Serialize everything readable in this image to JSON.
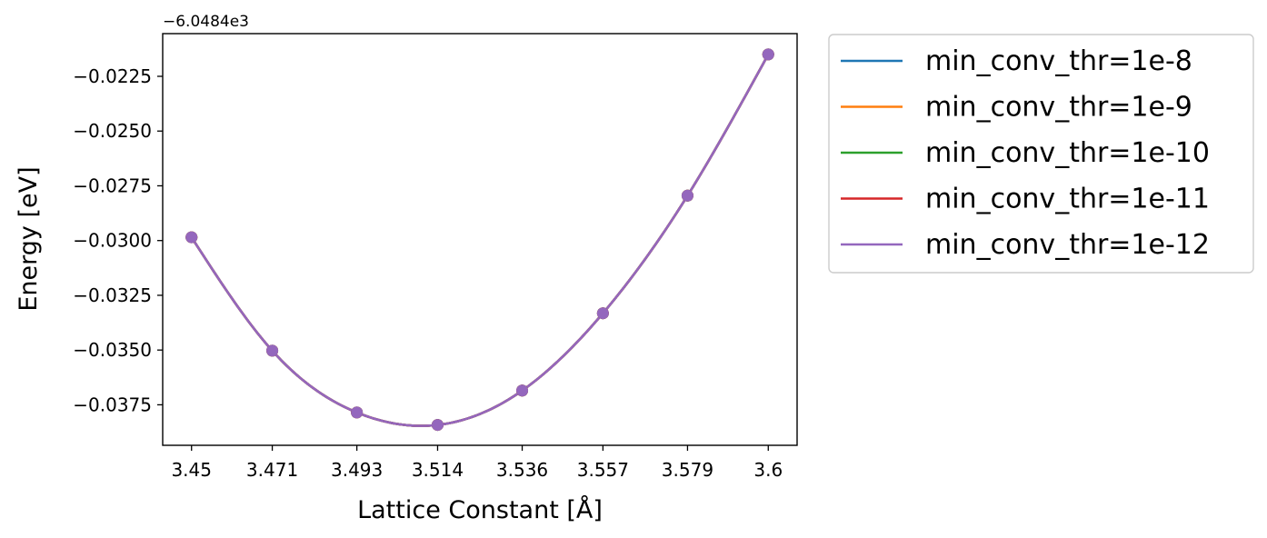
{
  "chart_data": {
    "type": "line",
    "xlabel": "Lattice Constant [Å]",
    "ylabel": "Energy [eV]",
    "y_offset_label": "−6.0484e3",
    "y_offset": -6048.4,
    "x_ticks": [
      3.45,
      3.471,
      3.493,
      3.514,
      3.536,
      3.557,
      3.579,
      3.6
    ],
    "x_tick_labels": [
      "3.45",
      "3.471",
      "3.493",
      "3.514",
      "3.536",
      "3.557",
      "3.579",
      "3.6"
    ],
    "y_ticks": [
      -0.0225,
      -0.025,
      -0.0275,
      -0.03,
      -0.0325,
      -0.035,
      -0.0375
    ],
    "y_tick_labels": [
      "−0.0225",
      "−0.0250",
      "−0.0275",
      "−0.0300",
      "−0.0325",
      "−0.0350",
      "−0.0375"
    ],
    "xlim": [
      3.4425,
      3.6075
    ],
    "ylim": [
      -0.03935,
      -0.02055
    ],
    "grid": false,
    "legend_position": "outside-right",
    "x": [
      3.45,
      3.471,
      3.493,
      3.514,
      3.536,
      3.557,
      3.579,
      3.6
    ],
    "series": [
      {
        "name": "min_conv_thr=1e-8",
        "color": "#1f77b4",
        "values": [
          -0.02985,
          -0.03503,
          -0.03785,
          -0.03842,
          -0.03685,
          -0.03332,
          -0.02795,
          -0.0215
        ]
      },
      {
        "name": "min_conv_thr=1e-9",
        "color": "#ff7f0e",
        "values": [
          -0.02985,
          -0.03503,
          -0.03785,
          -0.03842,
          -0.03685,
          -0.03332,
          -0.02795,
          -0.0215
        ]
      },
      {
        "name": "min_conv_thr=1e-10",
        "color": "#2ca02c",
        "values": [
          -0.02985,
          -0.03503,
          -0.03785,
          -0.03842,
          -0.03685,
          -0.03332,
          -0.02795,
          -0.0215
        ]
      },
      {
        "name": "min_conv_thr=1e-11",
        "color": "#d62728",
        "values": [
          -0.02985,
          -0.03503,
          -0.03785,
          -0.03842,
          -0.03685,
          -0.03332,
          -0.02795,
          -0.0215
        ]
      },
      {
        "name": "min_conv_thr=1e-12",
        "color": "#9467bd",
        "values": [
          -0.02985,
          -0.03503,
          -0.03785,
          -0.03842,
          -0.03685,
          -0.03332,
          -0.02795,
          -0.0215
        ]
      }
    ]
  }
}
